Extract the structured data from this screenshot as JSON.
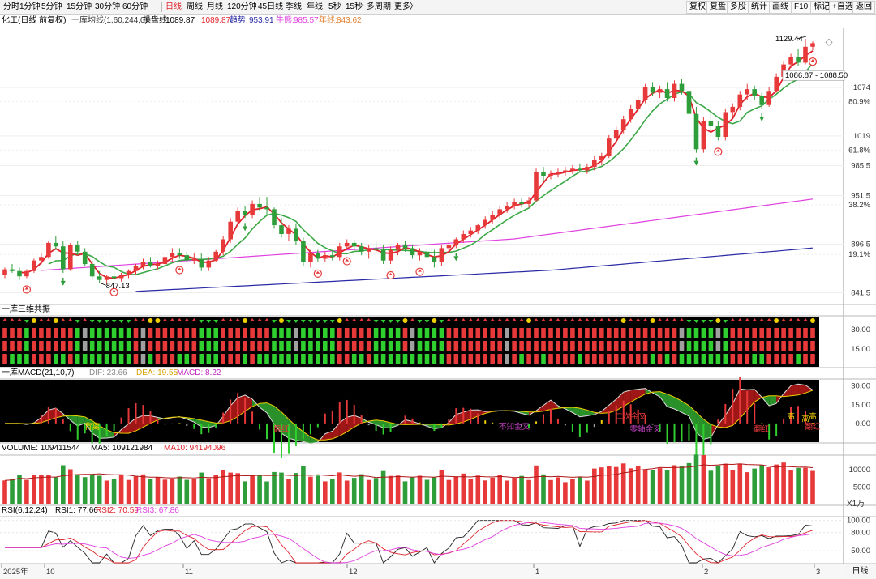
{
  "toolbar": {
    "periods": [
      {
        "label": "分时",
        "active": false
      },
      {
        "label": "1分钟",
        "active": false
      },
      {
        "label": "5分钟",
        "active": false
      },
      {
        "label": "15分钟",
        "active": false
      },
      {
        "label": "30分钟",
        "active": false
      },
      {
        "label": "60分钟",
        "active": false
      },
      {
        "label": "日线",
        "active": true
      },
      {
        "label": "周线",
        "active": false
      },
      {
        "label": "月线",
        "active": false
      },
      {
        "label": "120分钟",
        "active": false
      },
      {
        "label": "45日线",
        "active": false
      },
      {
        "label": "季线",
        "active": false
      },
      {
        "label": "年线",
        "active": false
      },
      {
        "label": "5秒",
        "active": false
      },
      {
        "label": "15秒",
        "active": false
      },
      {
        "label": "多周期",
        "active": false
      },
      {
        "label": "更多",
        "active": false
      }
    ],
    "more_arrow": "〉",
    "right_buttons": [
      "复权",
      "复盘",
      "多股",
      "统计",
      "画线",
      "F10",
      "标记",
      "+自选",
      "返回"
    ]
  },
  "info": {
    "name": "化工(日线 前复权)",
    "indicator": "一库均线(1,60,244,0)",
    "cao_label": "操盘线:",
    "cao_value": "1089.87",
    "cao_value2": "1089.87",
    "trend_label": "趋势:",
    "trend_value": "953.91",
    "bull_label": "牛熊:",
    "bull_value": "985.57",
    "year_label": "年线:",
    "year_value": "843.62"
  },
  "colors": {
    "up": "#e8393a",
    "down": "#2e9e3a",
    "green_line": "#3aa845",
    "red_line": "#e0222b",
    "magenta": "#e040e0",
    "navy": "#2a2aa6",
    "yellow": "#f0d000"
  },
  "annotations": {
    "high_label": "1129.44",
    "low_label": "847.13",
    "range_label": "1086.87 - 1088.50"
  },
  "price_axis": {
    "ticks": [
      "1074",
      "80.9%",
      "1019",
      "61.8%",
      "985.5",
      "951.5",
      "38.2%",
      "896.5",
      "19.1%",
      "841.5"
    ]
  },
  "panels": {
    "resonance": {
      "title": "一库三维共振",
      "ticks": [
        "30.00",
        "15.00"
      ]
    },
    "macd": {
      "title": "一库MACD(21,10,7)",
      "dif_label": "DIF: 23.66",
      "dea_label": "DEA: 19.55",
      "macd_label": "MACD: 8.22",
      "ticks": [
        "30.00",
        "15.00",
        "0.00"
      ],
      "signals": [
        {
          "text": "背离",
          "color": "#f0d000"
        },
        {
          "text": "翻红",
          "color": "#e8393a"
        },
        {
          "text": "不知金叉",
          "color": "#c040c0"
        },
        {
          "text": "二次金叉",
          "color": "#e8393a"
        },
        {
          "text": "零轴金叉",
          "color": "#c040c0"
        },
        {
          "text": "翻红",
          "color": "#e8393a"
        },
        {
          "text": "高",
          "color": "#f0d000"
        },
        {
          "text": "高",
          "color": "#f0d000"
        },
        {
          "text": "翻红",
          "color": "#e8393a"
        },
        {
          "text": "高",
          "color": "#f0d000"
        }
      ]
    },
    "volume": {
      "title": "VOLUME: 109411544",
      "ma5": "MA5: 109121984",
      "ma10": "MA10: 94194096",
      "ticks": [
        "10000",
        "5000"
      ],
      "unit": "X1万"
    },
    "rsi": {
      "title": "RSI(6,12,24)",
      "rsi1": "RSI1: 77.66",
      "rsi2": "RSI2: 70.59",
      "rsi3": "RSI3: 67.86",
      "ticks": [
        "100.00",
        "80.00",
        "50.00"
      ]
    }
  },
  "x_axis": {
    "labels": [
      "2025年",
      "10",
      "11",
      "12",
      "1",
      "2",
      "3"
    ]
  },
  "bottom_button": "日线",
  "chart_data": {
    "type": "candlestick",
    "title": "化工(日线 前复权)",
    "ylim": [
      830,
      1140
    ],
    "candles": [
      [
        862,
        870,
        858,
        868
      ],
      [
        868,
        874,
        864,
        866
      ],
      [
        866,
        870,
        856,
        860
      ],
      [
        860,
        868,
        858,
        866
      ],
      [
        866,
        880,
        864,
        878
      ],
      [
        878,
        886,
        874,
        882
      ],
      [
        882,
        900,
        880,
        898
      ],
      [
        898,
        906,
        890,
        894
      ],
      [
        894,
        900,
        864,
        868
      ],
      [
        868,
        898,
        866,
        896
      ],
      [
        896,
        900,
        884,
        888
      ],
      [
        888,
        892,
        872,
        874
      ],
      [
        874,
        878,
        856,
        860
      ],
      [
        860,
        866,
        852,
        856
      ],
      [
        856,
        862,
        852,
        860
      ],
      [
        860,
        866,
        855,
        858
      ],
      [
        858,
        864,
        854,
        862
      ],
      [
        862,
        868,
        858,
        866
      ],
      [
        866,
        874,
        862,
        872
      ],
      [
        872,
        880,
        868,
        876
      ],
      [
        876,
        882,
        870,
        872
      ],
      [
        872,
        878,
        868,
        874
      ],
      [
        874,
        884,
        870,
        882
      ],
      [
        882,
        892,
        876,
        886
      ],
      [
        886,
        892,
        880,
        884
      ],
      [
        884,
        888,
        876,
        878
      ],
      [
        878,
        886,
        874,
        880
      ],
      [
        880,
        886,
        866,
        870
      ],
      [
        870,
        882,
        866,
        878
      ],
      [
        878,
        890,
        876,
        888
      ],
      [
        888,
        906,
        884,
        902
      ],
      [
        902,
        926,
        898,
        922
      ],
      [
        922,
        938,
        918,
        934
      ],
      [
        934,
        940,
        926,
        930
      ],
      [
        930,
        946,
        926,
        942
      ],
      [
        942,
        950,
        934,
        938
      ],
      [
        938,
        950,
        930,
        936
      ],
      [
        936,
        938,
        914,
        918
      ],
      [
        918,
        926,
        904,
        908
      ],
      [
        908,
        918,
        900,
        914
      ],
      [
        914,
        920,
        896,
        900
      ],
      [
        900,
        904,
        872,
        876
      ],
      [
        876,
        890,
        870,
        886
      ],
      [
        886,
        890,
        876,
        880
      ],
      [
        880,
        888,
        876,
        884
      ],
      [
        884,
        890,
        878,
        882
      ],
      [
        882,
        898,
        878,
        894
      ],
      [
        894,
        902,
        890,
        898
      ],
      [
        898,
        902,
        890,
        894
      ],
      [
        894,
        898,
        884,
        888
      ],
      [
        888,
        896,
        880,
        892
      ],
      [
        892,
        900,
        886,
        890
      ],
      [
        890,
        896,
        874,
        878
      ],
      [
        878,
        894,
        874,
        890
      ],
      [
        890,
        898,
        884,
        896
      ],
      [
        896,
        900,
        888,
        892
      ],
      [
        892,
        896,
        880,
        884
      ],
      [
        884,
        892,
        878,
        888
      ],
      [
        888,
        892,
        880,
        882
      ],
      [
        882,
        890,
        870,
        876
      ],
      [
        876,
        896,
        872,
        892
      ],
      [
        892,
        900,
        886,
        896
      ],
      [
        896,
        904,
        892,
        902
      ],
      [
        902,
        912,
        898,
        908
      ],
      [
        908,
        916,
        904,
        912
      ],
      [
        912,
        920,
        908,
        918
      ],
      [
        918,
        928,
        914,
        924
      ],
      [
        924,
        934,
        920,
        930
      ],
      [
        930,
        940,
        926,
        936
      ],
      [
        936,
        944,
        932,
        940
      ],
      [
        940,
        948,
        936,
        944
      ],
      [
        944,
        948,
        938,
        942
      ],
      [
        942,
        950,
        938,
        946
      ],
      [
        946,
        982,
        944,
        978
      ],
      [
        978,
        984,
        968,
        974
      ],
      [
        974,
        980,
        970,
        976
      ],
      [
        976,
        982,
        972,
        978
      ],
      [
        978,
        984,
        974,
        980
      ],
      [
        980,
        986,
        976,
        982
      ],
      [
        982,
        988,
        978,
        980
      ],
      [
        980,
        988,
        976,
        984
      ],
      [
        984,
        996,
        980,
        992
      ],
      [
        992,
        1000,
        986,
        996
      ],
      [
        996,
        1020,
        994,
        1016
      ],
      [
        1016,
        1030,
        1012,
        1026
      ],
      [
        1026,
        1042,
        1022,
        1038
      ],
      [
        1038,
        1054,
        1034,
        1050
      ],
      [
        1050,
        1064,
        1046,
        1060
      ],
      [
        1060,
        1078,
        1056,
        1074
      ],
      [
        1074,
        1080,
        1064,
        1068
      ],
      [
        1068,
        1076,
        1062,
        1072
      ],
      [
        1072,
        1080,
        1058,
        1062
      ],
      [
        1062,
        1082,
        1058,
        1078
      ],
      [
        1078,
        1084,
        1066,
        1070
      ],
      [
        1070,
        1074,
        1040,
        1044
      ],
      [
        1044,
        1052,
        1000,
        1004
      ],
      [
        1004,
        1040,
        1000,
        1036
      ],
      [
        1036,
        1044,
        1026,
        1030
      ],
      [
        1030,
        1036,
        1014,
        1018
      ],
      [
        1018,
        1050,
        1014,
        1046
      ],
      [
        1046,
        1056,
        1040,
        1052
      ],
      [
        1052,
        1070,
        1048,
        1066
      ],
      [
        1066,
        1078,
        1060,
        1072
      ],
      [
        1072,
        1076,
        1060,
        1064
      ],
      [
        1064,
        1068,
        1050,
        1054
      ],
      [
        1054,
        1074,
        1052,
        1070
      ],
      [
        1070,
        1090,
        1068,
        1086
      ],
      [
        1086,
        1104,
        1082,
        1100
      ],
      [
        1100,
        1112,
        1096,
        1108
      ],
      [
        1108,
        1118,
        1098,
        1102
      ],
      [
        1102,
        1129,
        1100,
        1120
      ],
      [
        1120,
        1126,
        1116,
        1124
      ]
    ],
    "y_axis_ticks": [
      1074,
      1019,
      985.5,
      951.5,
      896.5,
      841.5
    ],
    "series": [
      {
        "name": "操盘线",
        "color": "#e0222b"
      },
      {
        "name": "趋势",
        "color": "#3aa845"
      },
      {
        "name": "牛熊",
        "color": "#e040e0"
      },
      {
        "name": "年线",
        "color": "#2a2aa6"
      }
    ]
  }
}
